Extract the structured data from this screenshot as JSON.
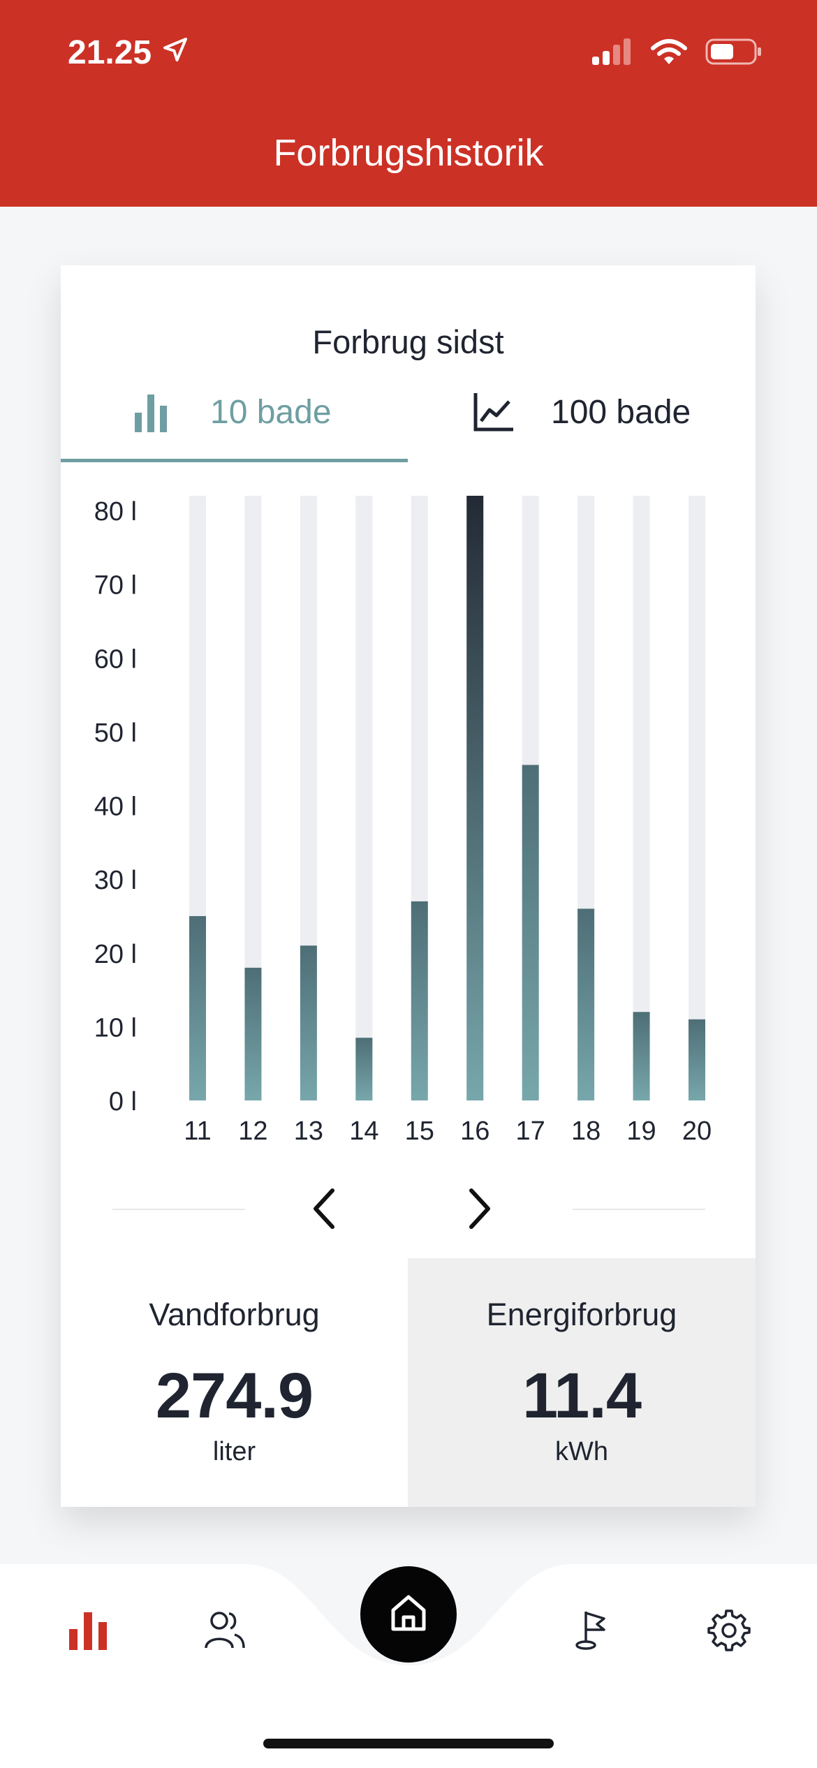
{
  "status_bar": {
    "time": "21.25"
  },
  "header": {
    "title": "Forbrugshistorik"
  },
  "card": {
    "title": "Forbrug sidst",
    "tabs": [
      {
        "label": "10 bade",
        "active": true,
        "icon": "bar-chart-icon"
      },
      {
        "label": "100 bade",
        "active": false,
        "icon": "line-chart-icon"
      }
    ]
  },
  "chart_data": {
    "type": "bar",
    "categories": [
      "11",
      "12",
      "13",
      "14",
      "15",
      "16",
      "17",
      "18",
      "19",
      "20"
    ],
    "values": [
      25,
      18,
      21,
      8.5,
      27,
      82,
      45.5,
      26,
      12,
      11
    ],
    "highlighted_category": "16",
    "y_ticks": [
      "0 l",
      "10 l",
      "20 l",
      "30 l",
      "40 l",
      "50 l",
      "60 l",
      "70 l",
      "80 l"
    ],
    "ylim": [
      0,
      82
    ],
    "colors": {
      "bar_top": "#3f5d66",
      "bar_bottom": "#77a7ab",
      "highlight_top": "#232a36",
      "track": "#eceef1"
    }
  },
  "stats": {
    "water": {
      "label": "Vandforbrug",
      "value": "274.9",
      "unit": "liter"
    },
    "energy": {
      "label": "Energiforbrug",
      "value": "11.4",
      "unit": "kWh"
    }
  },
  "tabbar": {
    "items": [
      "stats-icon",
      "users-icon",
      "home-icon",
      "flag-icon",
      "settings-icon"
    ],
    "active": "stats-icon"
  },
  "colors": {
    "brand": "#cc3126",
    "accent": "#6e9ea2",
    "text": "#1f2430"
  }
}
